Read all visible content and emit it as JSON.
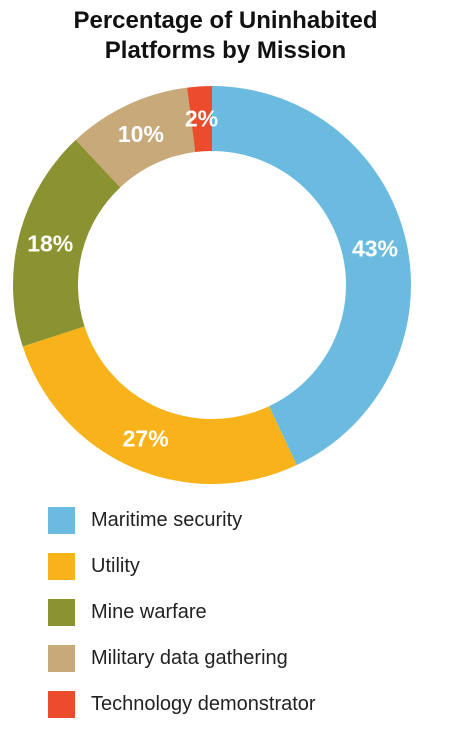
{
  "chart_data": {
    "type": "pie",
    "title_line1": "Percentage of Uninhabited",
    "title_line2": "Platforms by Mission",
    "donut": true,
    "legend_position": "bottom",
    "slices": [
      {
        "name": "Maritime security",
        "value": 43,
        "label": "43%",
        "color": "#6bbbe0"
      },
      {
        "name": "Utility",
        "value": 27,
        "label": "27%",
        "color": "#f7b319"
      },
      {
        "name": "Mine warfare",
        "value": 18,
        "label": "18%",
        "color": "#8a9231"
      },
      {
        "name": "Military data gathering",
        "value": 10,
        "label": "10%",
        "color": "#c8aa7a"
      },
      {
        "name": "Technology demonstrator",
        "value": 2,
        "label": "2%",
        "color": "#ea4c2c"
      }
    ]
  }
}
